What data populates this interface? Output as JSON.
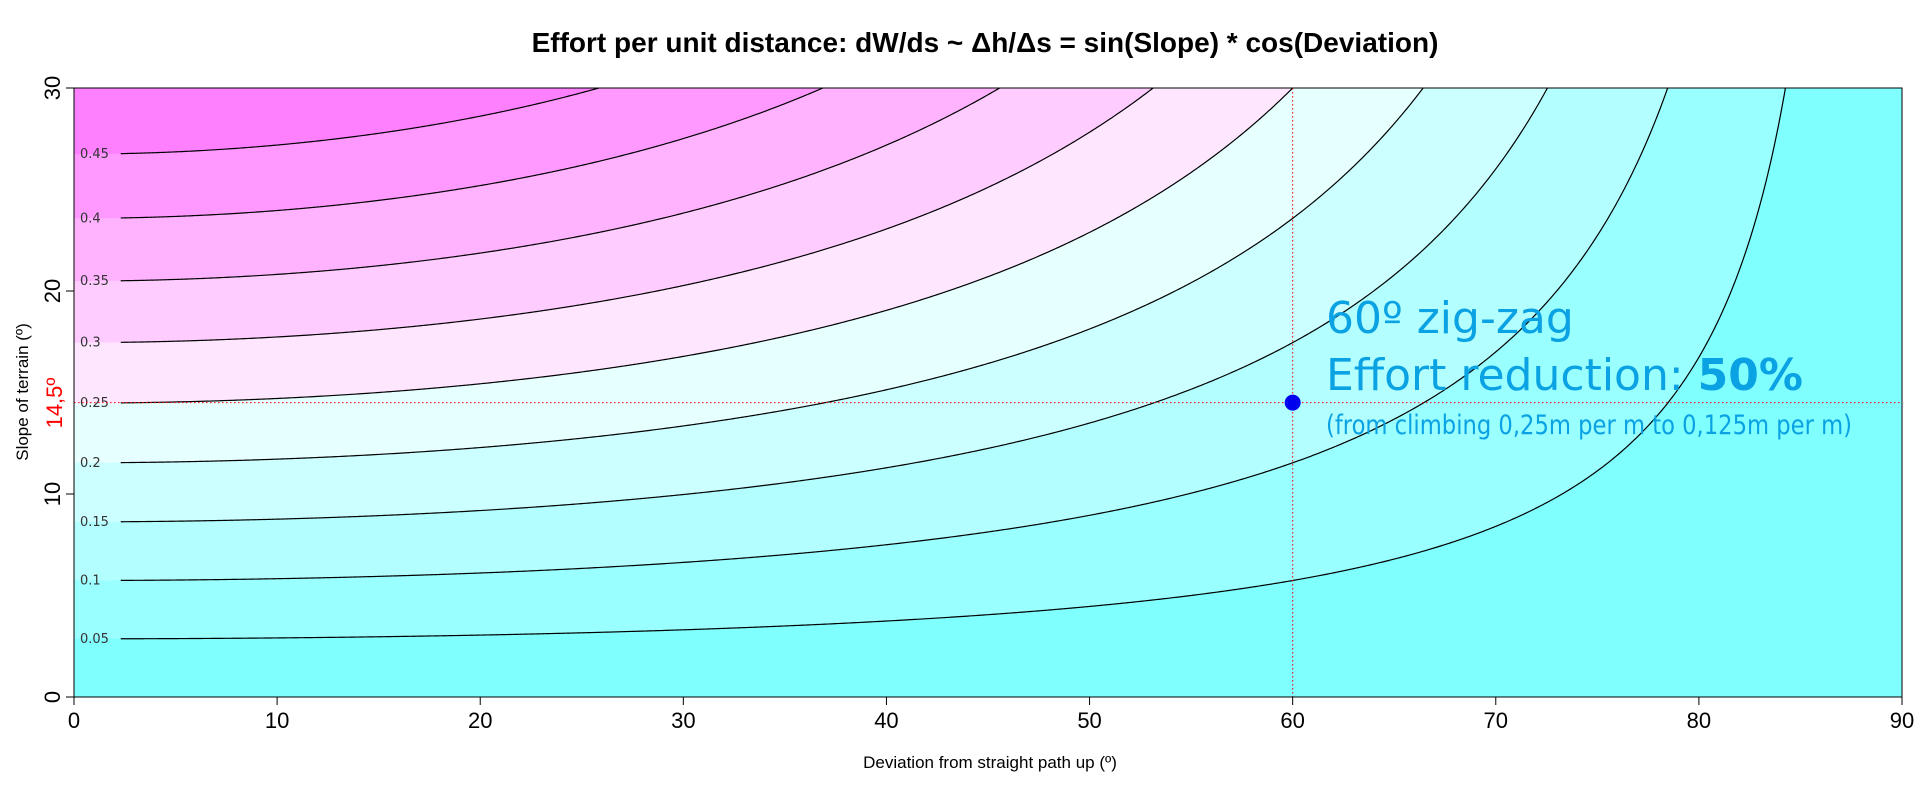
{
  "chart_data": {
    "type": "contour",
    "title": "Effort per unit distance: dW/ds ~ Δh/Δs = sin(Slope) * cos(Deviation)",
    "xlabel": "Deviation from straight path up (º)",
    "ylabel": "Slope of terrain (º)",
    "xlim": [
      0,
      90
    ],
    "ylim": [
      0,
      30
    ],
    "x_ticks": [
      0,
      10,
      20,
      30,
      40,
      50,
      60,
      70,
      80,
      90
    ],
    "y_ticks": [
      0,
      10,
      20,
      30
    ],
    "function": "sin(Slope) * cos(Deviation)",
    "contour_levels": [
      0.05,
      0.1,
      0.15,
      0.2,
      0.25,
      0.3,
      0.35,
      0.4,
      0.45
    ],
    "contour_labels": [
      "0.05",
      "0.1",
      "0.15",
      "0.2",
      "0.25",
      "0.3",
      "0.35",
      "0.4",
      "0.45"
    ],
    "fill_colors": {
      "low_to_high": [
        "#80ffff",
        "#99ffff",
        "#b3ffff",
        "#ccffff",
        "#e6ffff",
        "#ffe6ff",
        "#ffccff",
        "#ffb3ff",
        "#ff99ff",
        "#ff80ff"
      ]
    },
    "reference_lines": {
      "vertical_x": 60,
      "horizontal_y": 14.5,
      "color": "#ff0000",
      "style": "dotted"
    },
    "highlight_point": {
      "x": 60,
      "y": 14.5,
      "color": "#0000ee"
    },
    "y_marker_label": "14,5º",
    "annotation": {
      "line1": "60º zig-zag",
      "line2_prefix": "Effort reduction: ",
      "line2_value": "50%",
      "line3": "(from climbing 0,25m per m to 0,125m per m)",
      "color": "#0aa2e3"
    },
    "grid": false,
    "legend": "none"
  }
}
